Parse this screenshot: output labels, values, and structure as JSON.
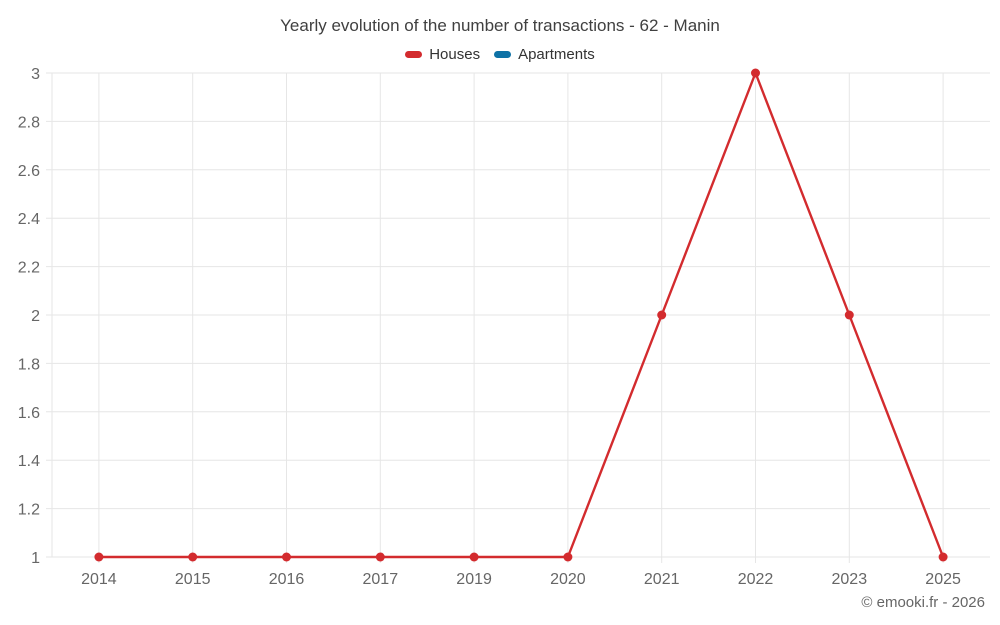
{
  "page": {
    "credit": "© emooki.fr - 2026",
    "background_color": "#ffffff"
  },
  "chart_data": {
    "type": "line",
    "title": "Yearly evolution of the number of transactions - 62 - Manin",
    "categories": [
      "2014",
      "2015",
      "2016",
      "2017",
      "2019",
      "2020",
      "2021",
      "2022",
      "2023",
      "2025"
    ],
    "series": [
      {
        "name": "Houses",
        "color": "#d32b2e",
        "values": [
          1,
          1,
          1,
          1,
          1,
          1,
          2,
          3,
          2,
          1
        ]
      },
      {
        "name": "Apartments",
        "color": "#0e72a6",
        "values": []
      }
    ],
    "xlabel": "",
    "ylabel": "",
    "ylim": [
      1,
      3
    ],
    "ytick_step": 0.2,
    "ytick_labels": [
      "1",
      "1.2",
      "1.4",
      "1.6",
      "1.8",
      "2",
      "2.2",
      "2.4",
      "2.6",
      "2.8",
      "3"
    ],
    "grid": true,
    "grid_color": "#e6e6e6",
    "axis_label_color": "#666666",
    "title_color": "#404040",
    "legend_position": "top",
    "marker": "circle"
  }
}
